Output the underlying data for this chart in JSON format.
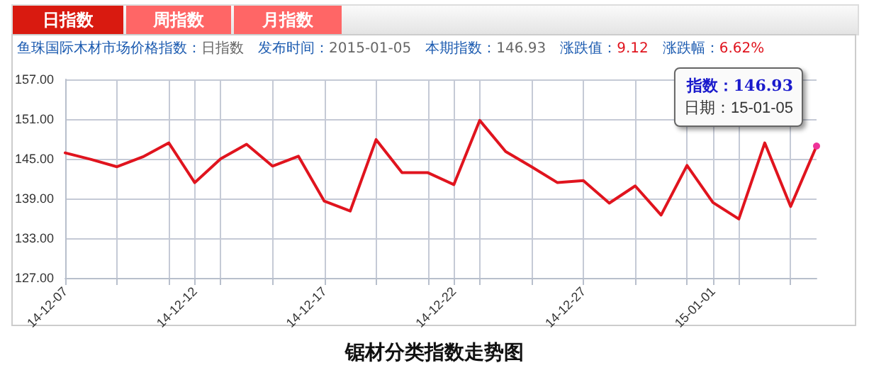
{
  "chart_data": {
    "type": "line",
    "title": "锯材分类指数走势图",
    "annotations": [
      "日指数",
      "周指数",
      "月指数",
      "鱼珠国际木材市场价格指数：",
      "日指数",
      "发布时间：",
      "2015-01-05",
      "本期指数：",
      "146.93",
      "涨跌值：",
      "9.12",
      "涨跌幅：",
      "6.62%",
      {
        "text": "指数：146.93\n日期：15-01-05",
        "x": "2015-01-05",
        "y": 146.93
      }
    ],
    "x": [
      "2014-12-07",
      "2014-12-08",
      "2014-12-09",
      "2014-12-10",
      "2014-12-11",
      "2014-12-12",
      "2014-12-13",
      "2014-12-14",
      "2014-12-15",
      "2014-12-16",
      "2014-12-17",
      "2014-12-18",
      "2014-12-19",
      "2014-12-20",
      "2014-12-21",
      "2014-12-22",
      "2014-12-23",
      "2014-12-24",
      "2014-12-25",
      "2014-12-26",
      "2014-12-27",
      "2014-12-28",
      "2014-12-29",
      "2014-12-30",
      "2014-12-31",
      "2015-01-01",
      "2015-01-02",
      "2015-01-03",
      "2015-01-04",
      "2015-01-05"
    ],
    "series": [
      {
        "color": "#e0141e",
        "values": [
          145.9,
          144.9,
          143.8,
          145.3,
          147.4,
          141.4,
          145.0,
          147.2,
          143.9,
          145.4,
          138.6,
          137.1,
          147.9,
          142.9,
          142.9,
          141.1,
          150.8,
          146.1,
          143.8,
          141.4,
          141.7,
          138.3,
          140.9,
          136.5,
          144.0,
          138.4,
          135.9,
          147.4,
          137.8,
          146.93
        ]
      }
    ],
    "xlim": [
      "2014-12-07",
      "2015-01-05"
    ],
    "xticks": [
      {
        "value": "2014-12-07",
        "label": "14-12-07"
      },
      {
        "value": "2014-12-09",
        "label": null
      },
      {
        "value": "2014-12-11",
        "label": null
      },
      {
        "value": "2014-12-12",
        "label": "14-12-12"
      },
      {
        "value": "2014-12-13",
        "label": null
      },
      {
        "value": "2014-12-15",
        "label": null
      },
      {
        "value": "2014-12-17",
        "label": "14-12-17"
      },
      {
        "value": "2014-12-19",
        "label": null
      },
      {
        "value": "2014-12-21",
        "label": null
      },
      {
        "value": "2014-12-22",
        "label": "14-12-22"
      },
      {
        "value": "2014-12-23",
        "label": null
      },
      {
        "value": "2014-12-25",
        "label": null
      },
      {
        "value": "2014-12-27",
        "label": "14-12-27"
      },
      {
        "value": "2014-12-29",
        "label": null
      },
      {
        "value": "2014-12-31",
        "label": null
      },
      {
        "value": "2015-01-01",
        "label": "15-01-01"
      },
      {
        "value": "2015-01-02",
        "label": null
      },
      {
        "value": "2015-01-04",
        "label": null
      }
    ],
    "ylim": [
      127,
      157
    ],
    "yticks": [
      {
        "value": 127,
        "label": "127.00"
      },
      {
        "value": 133,
        "label": "133.00"
      },
      {
        "value": 139,
        "label": "139.00"
      },
      {
        "value": 145,
        "label": "145.00"
      },
      {
        "value": 151,
        "label": "151.00"
      },
      {
        "value": 157,
        "label": "157.00"
      }
    ],
    "grid": true,
    "marker": "none",
    "line_style": "solid"
  }
}
